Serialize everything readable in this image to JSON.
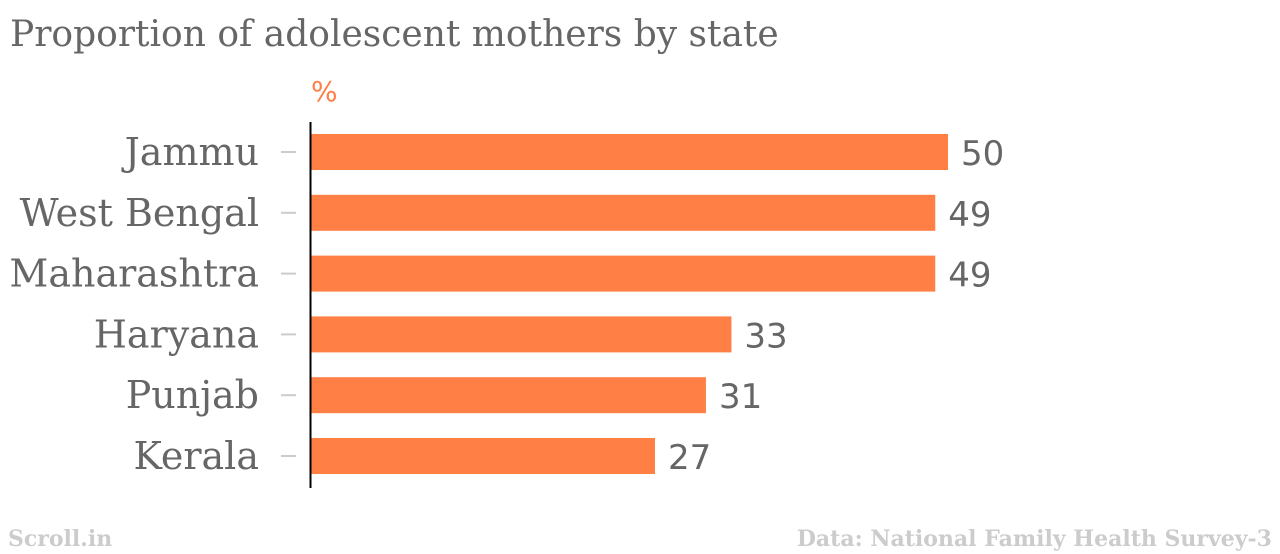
{
  "header": {
    "title": "Proportion of adolescent mothers by state",
    "unit_label": "%"
  },
  "footer": {
    "source": "Scroll.in",
    "credit": "Data: National Family Health Survey-3"
  },
  "colors": {
    "bar": "#ff7f45",
    "text": "#666666",
    "footer_text": "#cccccc",
    "axis": "#000000",
    "tick": "#cccccc"
  },
  "chart_data": {
    "type": "bar",
    "orientation": "horizontal",
    "categories": [
      "Jammu",
      "West Bengal",
      "Maharashtra",
      "Haryana",
      "Punjab",
      "Kerala"
    ],
    "values": [
      50,
      49,
      49,
      33,
      31,
      27
    ],
    "title": "Proportion of adolescent mothers by state",
    "xlabel": "%",
    "ylabel": "",
    "xlim": [
      0,
      50
    ],
    "grid": false,
    "legend": "none",
    "data_labels": true
  }
}
